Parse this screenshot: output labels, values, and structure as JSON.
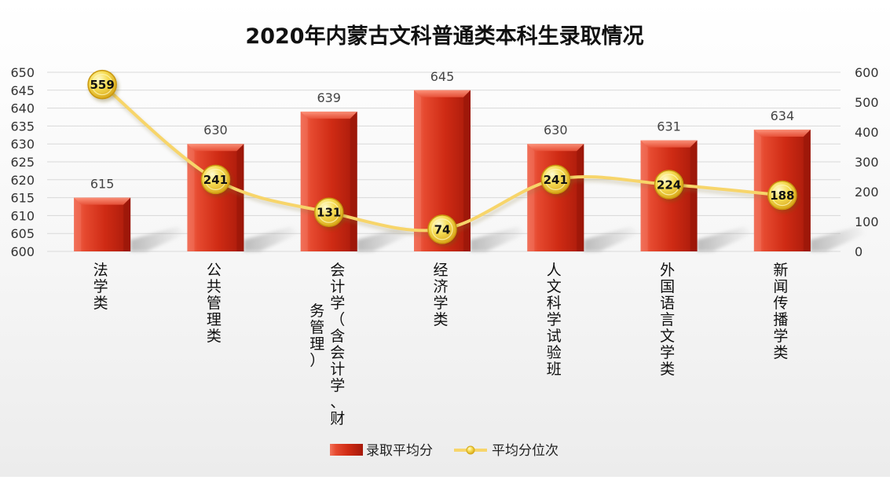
{
  "chart_data": {
    "type": "bar+line",
    "title": "2020年内蒙古文科普通类本科生录取情况",
    "categories": [
      "法学类",
      "公共管理类",
      "会计学（含会计学、财务管理）",
      "经济学类",
      "人文科学试验班",
      "外国语言文学类",
      "新闻传播学类"
    ],
    "category_label_columns": [
      [
        "法学类"
      ],
      [
        "公共管理类"
      ],
      [
        "会计学（含会计学、财",
        "务管理）"
      ],
      [
        "经济学类"
      ],
      [
        "人文科学试验班"
      ],
      [
        "外国语言文学类"
      ],
      [
        "新闻传播学类"
      ]
    ],
    "series": [
      {
        "name": "录取平均分",
        "type": "bar",
        "axis": "left",
        "values": [
          615,
          630,
          639,
          645,
          630,
          631,
          634
        ],
        "color": "#d9331b"
      },
      {
        "name": "平均分位次",
        "type": "line",
        "axis": "right",
        "values": [
          559,
          241,
          131,
          74,
          241,
          224,
          188
        ],
        "color": "#f7d56a"
      }
    ],
    "y_left": {
      "min": 600,
      "max": 650,
      "step": 5,
      "ticks": [
        "600",
        "605",
        "610",
        "615",
        "620",
        "625",
        "630",
        "635",
        "640",
        "645",
        "650"
      ]
    },
    "y_right": {
      "min": 0,
      "max": 600,
      "step": 100,
      "ticks": [
        "0",
        "100",
        "200",
        "300",
        "400",
        "500",
        "600"
      ]
    },
    "grid": true,
    "legend": {
      "position": "bottom"
    }
  }
}
